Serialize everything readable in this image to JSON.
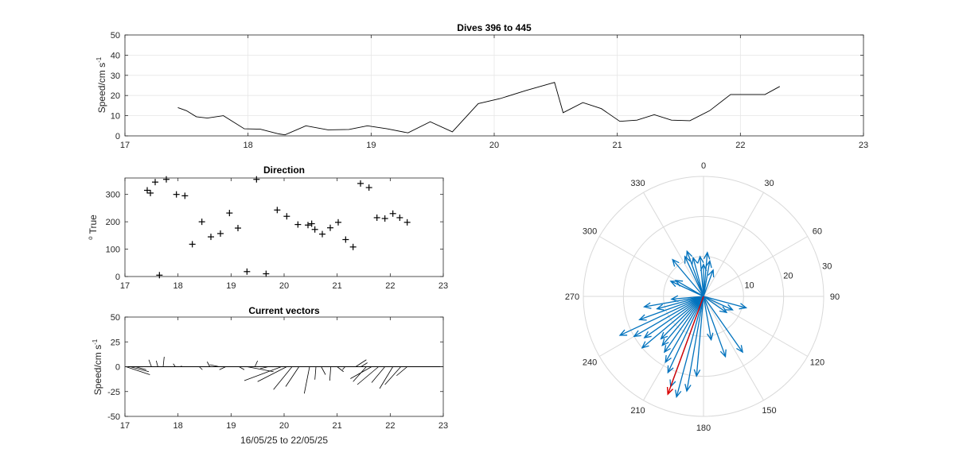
{
  "chart_data": [
    {
      "type": "line",
      "title": "Dives 396 to 445",
      "xlabel": "",
      "ylabel": "Speed/cm s",
      "ylabel_sup": "-1",
      "xlim": [
        17,
        23
      ],
      "ylim": [
        0,
        50
      ],
      "xticks": [
        "17",
        "18",
        "19",
        "20",
        "21",
        "22",
        "23"
      ],
      "yticks": [
        "0",
        "10",
        "20",
        "30",
        "40",
        "50"
      ],
      "grid": true,
      "series": [
        {
          "x": [
            17.43,
            17.5,
            17.58,
            17.67,
            17.8,
            17.97,
            18.1,
            18.25,
            18.3,
            18.47,
            18.65,
            18.82,
            18.97,
            19.13,
            19.3,
            19.48,
            19.66,
            19.87,
            20.05,
            20.26,
            20.49,
            20.56,
            20.72,
            20.87,
            21.02,
            21.16,
            21.3,
            21.44,
            21.59,
            21.75,
            21.92,
            22.09,
            22.2,
            22.32
          ],
          "y": [
            14,
            12.5,
            9.5,
            8.8,
            10,
            3.5,
            3.3,
            1,
            0.5,
            5,
            3,
            3.2,
            5,
            3.5,
            1.5,
            7,
            2,
            16,
            18.5,
            22.5,
            26.5,
            11.5,
            16.5,
            13.5,
            7.2,
            7.8,
            10.5,
            7.8,
            7.5,
            12.5,
            20.5,
            20.5,
            20.5,
            24.5
          ]
        }
      ]
    },
    {
      "type": "scatter",
      "title": "Direction",
      "xlabel": "",
      "ylabel": "o True",
      "ylabel_deg": "o",
      "ylabel_text": "True",
      "xlim": [
        17,
        23
      ],
      "ylim": [
        0,
        360
      ],
      "xticks": [
        "17",
        "18",
        "19",
        "20",
        "21",
        "22",
        "23"
      ],
      "yticks": [
        "0",
        "100",
        "200",
        "300"
      ],
      "grid": false,
      "series": [
        {
          "x": [
            17.42,
            17.48,
            17.57,
            17.65,
            17.78,
            17.97,
            18.13,
            18.27,
            18.45,
            18.62,
            18.8,
            18.97,
            19.13,
            19.3,
            19.48,
            19.66,
            19.87,
            20.05,
            20.26,
            20.45,
            20.52,
            20.58,
            20.72,
            20.87,
            21.02,
            21.16,
            21.3,
            21.44,
            21.6,
            21.75,
            21.9,
            22.05,
            22.18,
            22.32
          ],
          "y": [
            315,
            305,
            345,
            5,
            355,
            300,
            295,
            118,
            200,
            145,
            157,
            232,
            177,
            18,
            355,
            10,
            243,
            220,
            190,
            188,
            193,
            172,
            155,
            178,
            198,
            135,
            108,
            340,
            325,
            215,
            212,
            230,
            215,
            198
          ]
        }
      ]
    },
    {
      "type": "line",
      "title": "Current vectors",
      "xlabel": "16/05/25 to 22/05/25",
      "ylabel": "Speed/cm s",
      "ylabel_sup": "-1",
      "xlim": [
        17,
        23
      ],
      "ylim": [
        -50,
        50
      ],
      "xticks": [
        "17",
        "18",
        "19",
        "20",
        "21",
        "22",
        "23"
      ],
      "yticks": [
        "-50",
        "-25",
        "0",
        "25",
        "50"
      ],
      "grid": false,
      "vectors": [
        {
          "t": 17.02,
          "dx": 0.45,
          "dy": -8
        },
        {
          "t": 17.1,
          "dx": 0.35,
          "dy": -5
        },
        {
          "t": 17.2,
          "dx": 0.2,
          "dy": -3
        },
        {
          "t": 17.5,
          "dx": -0.05,
          "dy": 7
        },
        {
          "t": 17.62,
          "dx": -0.03,
          "dy": 6
        },
        {
          "t": 17.72,
          "dx": 0.02,
          "dy": 10
        },
        {
          "t": 17.95,
          "dx": -0.04,
          "dy": 3
        },
        {
          "t": 18.05,
          "dx": 0.02,
          "dy": 1
        },
        {
          "t": 18.4,
          "dx": 0.06,
          "dy": -3
        },
        {
          "t": 18.6,
          "dx": -0.05,
          "dy": 5
        },
        {
          "t": 18.78,
          "dx": -0.18,
          "dy": 2
        },
        {
          "t": 18.9,
          "dx": -0.12,
          "dy": -3
        },
        {
          "t": 19.15,
          "dx": 0.1,
          "dy": -3
        },
        {
          "t": 19.3,
          "dx": 0.5,
          "dy": -5
        },
        {
          "t": 19.45,
          "dx": 0.05,
          "dy": 6
        },
        {
          "t": 19.7,
          "dx": -0.15,
          "dy": -2
        },
        {
          "t": 19.95,
          "dx": -0.7,
          "dy": -14
        },
        {
          "t": 20.05,
          "dx": -0.55,
          "dy": -15
        },
        {
          "t": 20.15,
          "dx": -0.35,
          "dy": -23
        },
        {
          "t": 20.28,
          "dx": -0.25,
          "dy": -20
        },
        {
          "t": 20.48,
          "dx": -0.1,
          "dy": -27
        },
        {
          "t": 20.6,
          "dx": -0.02,
          "dy": -13
        },
        {
          "t": 20.7,
          "dx": 0.08,
          "dy": -8
        },
        {
          "t": 20.88,
          "dx": -0.02,
          "dy": -14
        },
        {
          "t": 21.0,
          "dx": 0.12,
          "dy": -5
        },
        {
          "t": 21.15,
          "dx": -0.05,
          "dy": -3
        },
        {
          "t": 21.35,
          "dx": 0.2,
          "dy": 7
        },
        {
          "t": 21.45,
          "dx": 0.12,
          "dy": 4
        },
        {
          "t": 21.55,
          "dx": -0.25,
          "dy": -15
        },
        {
          "t": 21.65,
          "dx": -0.4,
          "dy": -12
        },
        {
          "t": 21.78,
          "dx": -0.4,
          "dy": -18
        },
        {
          "t": 21.9,
          "dx": -0.25,
          "dy": -16
        },
        {
          "t": 22.05,
          "dx": -0.25,
          "dy": -22
        },
        {
          "t": 22.2,
          "dx": -0.3,
          "dy": -18
        },
        {
          "t": 22.32,
          "dx": -0.2,
          "dy": -9
        }
      ]
    },
    {
      "type": "polar",
      "title": "",
      "rmax": 30,
      "rticks": [
        "10",
        "20",
        "30"
      ],
      "angle_labels": [
        "0",
        "30",
        "60",
        "90",
        "120",
        "150",
        "180",
        "210",
        "240",
        "270",
        "300",
        "330"
      ],
      "grid": true,
      "arrow_color": "#0072BD",
      "highlight_color": "#D90000",
      "arrows": [
        {
          "dir": 340,
          "speed": 12
        },
        {
          "dir": 345,
          "speed": 10
        },
        {
          "dir": 335,
          "speed": 11
        },
        {
          "dir": 0,
          "speed": 8
        },
        {
          "dir": 5,
          "speed": 11
        },
        {
          "dir": 355,
          "speed": 10
        },
        {
          "dir": 20,
          "speed": 7
        },
        {
          "dir": 10,
          "speed": 9
        },
        {
          "dir": 320,
          "speed": 12
        },
        {
          "dir": 300,
          "speed": 8
        },
        {
          "dir": 295,
          "speed": 9
        },
        {
          "dir": 105,
          "speed": 11
        },
        {
          "dir": 115,
          "speed": 8
        },
        {
          "dir": 125,
          "speed": 7
        },
        {
          "dir": 145,
          "speed": 17
        },
        {
          "dir": 160,
          "speed": 16
        },
        {
          "dir": 170,
          "speed": 11
        },
        {
          "dir": 185,
          "speed": 20
        },
        {
          "dir": 190,
          "speed": 24
        },
        {
          "dir": 195,
          "speed": 26
        },
        {
          "dir": 200,
          "speed": 24
        },
        {
          "dir": 205,
          "speed": 21
        },
        {
          "dir": 210,
          "speed": 19
        },
        {
          "dir": 215,
          "speed": 17
        },
        {
          "dir": 220,
          "speed": 16
        },
        {
          "dir": 225,
          "speed": 15
        },
        {
          "dir": 230,
          "speed": 20
        },
        {
          "dir": 235,
          "speed": 18
        },
        {
          "dir": 240,
          "speed": 20
        },
        {
          "dir": 245,
          "speed": 23
        },
        {
          "dir": 250,
          "speed": 17
        },
        {
          "dir": 255,
          "speed": 12
        },
        {
          "dir": 260,
          "speed": 15
        },
        {
          "dir": 265,
          "speed": 8
        },
        {
          "dir": 200,
          "speed": 26,
          "highlight": true
        }
      ]
    }
  ]
}
